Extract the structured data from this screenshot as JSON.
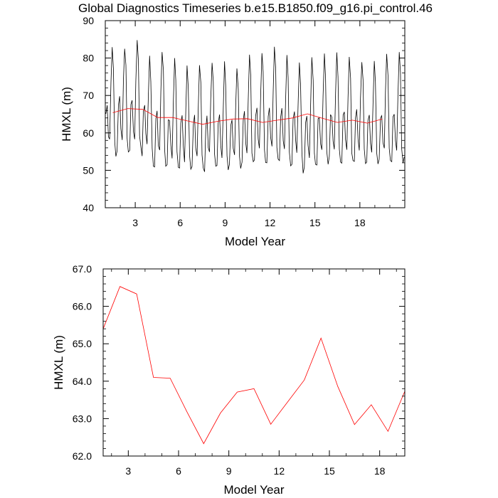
{
  "title": "Global Diagnostics Timeseries b.e15.B1850.f09_g16.pi_control.46",
  "chart_data": [
    {
      "type": "line",
      "xlabel": "Model Year",
      "ylabel": "HMXL (m)",
      "xlim": [
        1,
        21
      ],
      "ylim": [
        40,
        90
      ],
      "xticks": [
        3,
        6,
        9,
        12,
        15,
        18
      ],
      "yticks": [
        40,
        50,
        60,
        70,
        80,
        90
      ],
      "xtick_labels": [
        "3",
        "6",
        "9",
        "12",
        "15",
        "18"
      ],
      "ytick_labels": [
        "40",
        "50",
        "60",
        "70",
        "80",
        "90"
      ],
      "grid": false,
      "series": [
        {
          "color": "#000000",
          "x": [
            1.04,
            1.13,
            1.21,
            1.29,
            1.38,
            1.46,
            1.54,
            1.63,
            1.71,
            1.79,
            1.88,
            1.96,
            2.04,
            2.13,
            2.21,
            2.29,
            2.38,
            2.46,
            2.54,
            2.63,
            2.71,
            2.79,
            2.88,
            2.96,
            3.04,
            3.13,
            3.21,
            3.29,
            3.38,
            3.46,
            3.54,
            3.63,
            3.71,
            3.79,
            3.88,
            3.96,
            4.04,
            4.13,
            4.21,
            4.29,
            4.38,
            4.46,
            4.54,
            4.63,
            4.71,
            4.79,
            4.88,
            4.96,
            5.04,
            5.13,
            5.21,
            5.29,
            5.38,
            5.46,
            5.54,
            5.63,
            5.71,
            5.79,
            5.88,
            5.96,
            6.04,
            6.13,
            6.21,
            6.29,
            6.38,
            6.46,
            6.54,
            6.63,
            6.71,
            6.79,
            6.88,
            6.96,
            7.04,
            7.13,
            7.21,
            7.29,
            7.38,
            7.46,
            7.54,
            7.63,
            7.71,
            7.79,
            7.88,
            7.96,
            8.04,
            8.13,
            8.21,
            8.29,
            8.38,
            8.46,
            8.54,
            8.63,
            8.71,
            8.79,
            8.88,
            8.96,
            9.04,
            9.13,
            9.21,
            9.29,
            9.38,
            9.46,
            9.54,
            9.63,
            9.71,
            9.79,
            9.88,
            9.96,
            10.04,
            10.13,
            10.21,
            10.29,
            10.38,
            10.46,
            10.54,
            10.63,
            10.71,
            10.79,
            10.88,
            10.96,
            11.04,
            11.13,
            11.21,
            11.29,
            11.38,
            11.46,
            11.54,
            11.63,
            11.71,
            11.79,
            11.88,
            11.96,
            12.04,
            12.13,
            12.21,
            12.29,
            12.38,
            12.46,
            12.54,
            12.63,
            12.71,
            12.79,
            12.88,
            12.96,
            13.04,
            13.13,
            13.21,
            13.29,
            13.38,
            13.46,
            13.54,
            13.63,
            13.71,
            13.79,
            13.88,
            13.96,
            14.04,
            14.13,
            14.21,
            14.29,
            14.38,
            14.46,
            14.54,
            14.63,
            14.71,
            14.79,
            14.88,
            14.96,
            15.04,
            15.13,
            15.21,
            15.29,
            15.38,
            15.46,
            15.54,
            15.63,
            15.71,
            15.79,
            15.88,
            15.96,
            16.04,
            16.13,
            16.21,
            16.29,
            16.38,
            16.46,
            16.54,
            16.63,
            16.71,
            16.79,
            16.88,
            16.96,
            17.04,
            17.13,
            17.21,
            17.29,
            17.38,
            17.46,
            17.54,
            17.63,
            17.71,
            17.79,
            17.88,
            17.96,
            18.04,
            18.13,
            18.21,
            18.29,
            18.38,
            18.46,
            18.54,
            18.63,
            18.71,
            18.79,
            18.88,
            18.96,
            19.04,
            19.13,
            19.21,
            19.29,
            19.38,
            19.46,
            19.54,
            19.63,
            19.71,
            19.79,
            19.88,
            19.96,
            20.04,
            20.13,
            20.21,
            20.29,
            20.38,
            20.46,
            20.54,
            20.63,
            20.71,
            20.79,
            20.88,
            20.96
          ],
          "values": [
            65.1,
            67.4,
            59.0,
            58.3,
            73.7,
            82.9,
            77.2,
            57.5,
            53.7,
            55.2,
            67.6,
            69.8,
            61.1,
            58.1,
            74.2,
            82.5,
            78.1,
            58.5,
            54.9,
            55.3,
            67.6,
            68.7,
            60.3,
            58.3,
            73.7,
            84.8,
            79.5,
            59.2,
            56.2,
            53.8,
            65.8,
            67.4,
            59.8,
            57.0,
            70.4,
            80.6,
            73.7,
            55.9,
            51.1,
            50.9,
            63.8,
            65.9,
            56.6,
            55.4,
            71.1,
            81.6,
            76.7,
            55.6,
            51.1,
            51.5,
            63.5,
            63.3,
            56.6,
            53.2,
            67.8,
            80.0,
            74.1,
            55.0,
            50.8,
            50.6,
            62.6,
            64.7,
            56.4,
            52.2,
            66.2,
            78.0,
            72.3,
            53.9,
            50.3,
            51.0,
            62.2,
            64.8,
            56.0,
            53.8,
            66.7,
            78.1,
            73.5,
            54.1,
            50.6,
            49.6,
            60.9,
            64.6,
            56.0,
            54.9,
            68.9,
            78.7,
            73.7,
            54.5,
            51.1,
            51.3,
            62.6,
            64.9,
            56.6,
            53.3,
            66.9,
            79.1,
            72.8,
            53.9,
            50.1,
            51.6,
            62.0,
            63.5,
            55.9,
            54.1,
            67.0,
            77.2,
            71.7,
            53.8,
            50.5,
            52.2,
            63.4,
            65.8,
            57.4,
            54.6,
            68.0,
            80.9,
            75.5,
            54.6,
            52.3,
            52.8,
            64.5,
            66.7,
            58.4,
            55.9,
            70.8,
            81.3,
            76.3,
            55.4,
            52.1,
            52.0,
            64.4,
            66.7,
            58.8,
            56.4,
            71.0,
            83.0,
            77.3,
            56.1,
            53.0,
            52.6,
            64.2,
            66.6,
            57.9,
            55.7,
            68.4,
            80.8,
            74.8,
            54.9,
            51.2,
            51.6,
            63.7,
            65.7,
            58.1,
            54.7,
            68.1,
            78.8,
            72.8,
            54.5,
            49.2,
            50.9,
            62.8,
            64.5,
            56.7,
            53.3,
            67.3,
            80.2,
            74.1,
            54.6,
            51.6,
            51.4,
            63.8,
            64.1,
            57.0,
            55.5,
            69.8,
            81.2,
            74.8,
            55.1,
            51.6,
            53.7,
            64.9,
            64.2,
            57.8,
            55.6,
            70.6,
            81.5,
            75.0,
            55.6,
            52.2,
            51.9,
            64.8,
            65.6,
            58.3,
            55.5,
            69.4,
            80.3,
            74.6,
            54.6,
            52.6,
            52.4,
            64.0,
            66.3,
            58.3,
            55.3,
            69.2,
            78.9,
            74.3,
            55.7,
            51.8,
            52.2,
            63.3,
            64.8,
            57.2,
            54.8,
            68.2,
            79.2,
            73.7,
            54.5,
            51.7,
            53.0,
            64.0,
            64.6,
            57.4,
            55.9,
            70.9,
            81.1,
            75.3,
            55.9,
            52.6,
            52.3,
            64.3,
            65.0,
            57.9,
            55.3,
            69.7,
            81.6,
            76.1,
            55.8,
            52.0,
            53.6
          ]
        },
        {
          "color": "#ff0000",
          "x": [
            1.5,
            2.5,
            3.5,
            4.5,
            5.5,
            6.5,
            7.5,
            8.5,
            9.5,
            10.5,
            11.5,
            12.5,
            13.5,
            14.5,
            15.5,
            16.5,
            17.5,
            18.5,
            19.5
          ],
          "values": [
            65.4,
            66.5,
            66.3,
            64.1,
            64.1,
            63.2,
            62.3,
            63.1,
            63.7,
            63.8,
            62.8,
            63.4,
            64.0,
            65.1,
            63.9,
            62.8,
            63.4,
            62.6,
            63.7
          ]
        }
      ]
    },
    {
      "type": "line",
      "xlabel": "Model Year",
      "ylabel": "HMXL (m)",
      "xlim": [
        1.5,
        19.5
      ],
      "ylim": [
        62.0,
        67.0
      ],
      "xticks": [
        3,
        6,
        9,
        12,
        15,
        18
      ],
      "yticks": [
        62.0,
        63.0,
        64.0,
        65.0,
        66.0,
        67.0
      ],
      "xtick_labels": [
        "3",
        "6",
        "9",
        "12",
        "15",
        "18"
      ],
      "ytick_labels": [
        "62.0",
        "63.0",
        "64.0",
        "65.0",
        "66.0",
        "67.0"
      ],
      "grid": false,
      "series": [
        {
          "color": "#ff0000",
          "x": [
            1.5,
            2.5,
            3.5,
            4.5,
            5.5,
            6.5,
            7.5,
            8.5,
            9.5,
            10.5,
            11.5,
            12.5,
            13.5,
            14.5,
            15.5,
            16.5,
            17.5,
            18.5,
            19.5
          ],
          "values": [
            65.4,
            66.53,
            66.33,
            64.1,
            64.08,
            63.18,
            62.33,
            63.15,
            63.71,
            63.8,
            62.85,
            63.44,
            64.03,
            65.15,
            63.86,
            62.84,
            63.37,
            62.66,
            63.73
          ]
        }
      ]
    }
  ]
}
